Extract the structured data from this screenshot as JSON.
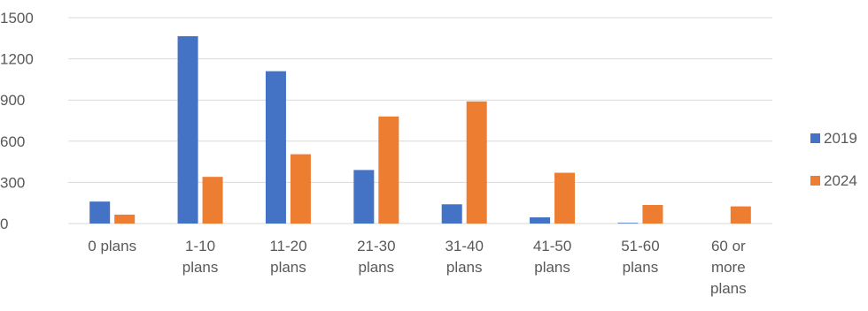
{
  "chart_data": {
    "type": "bar",
    "categories": [
      [
        "0 plans"
      ],
      [
        "1-10",
        "plans"
      ],
      [
        "11-20",
        "plans"
      ],
      [
        "21-30",
        "plans"
      ],
      [
        "31-40",
        "plans"
      ],
      [
        "41-50",
        "plans"
      ],
      [
        "51-60",
        "plans"
      ],
      [
        "60 or",
        "more",
        "plans"
      ]
    ],
    "series": [
      {
        "name": "2019",
        "color": "#4472C4",
        "values": [
          160,
          1365,
          1110,
          390,
          140,
          45,
          5,
          0
        ]
      },
      {
        "name": "2024",
        "color": "#ED7D31",
        "values": [
          65,
          340,
          505,
          780,
          890,
          370,
          135,
          125
        ]
      }
    ],
    "y_ticks": [
      "0",
      "300",
      "600",
      "900",
      "1200",
      "1500"
    ],
    "ylim": [
      0,
      1500
    ],
    "grid": true,
    "legend_position": "right",
    "title": "",
    "xlabel": "",
    "ylabel": ""
  }
}
